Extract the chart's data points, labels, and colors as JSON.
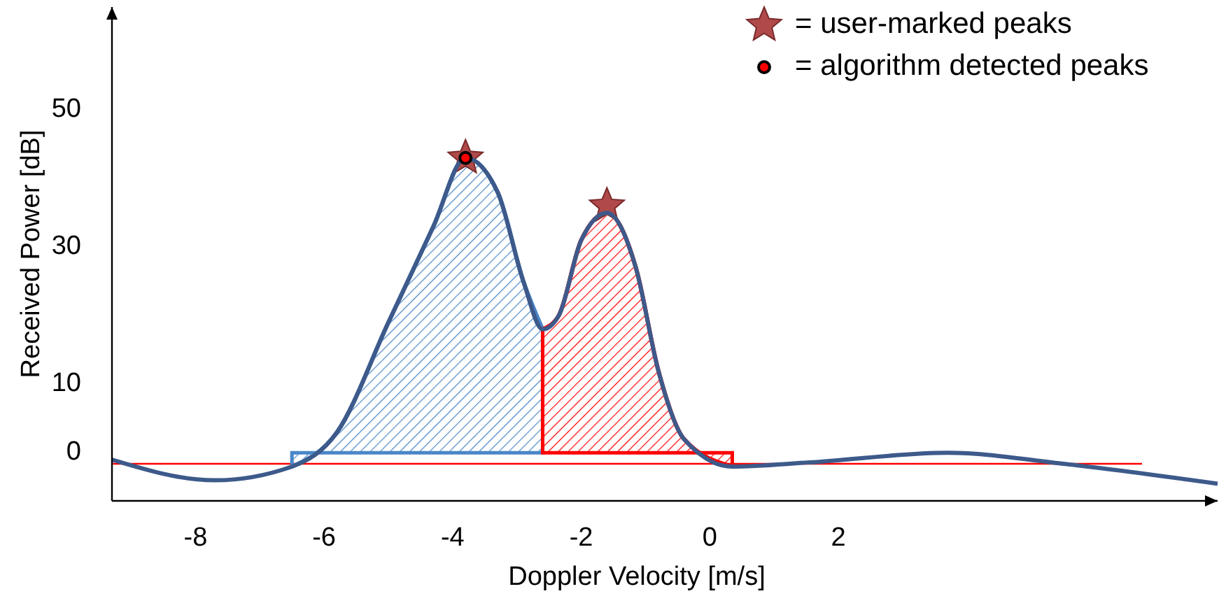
{
  "chart_data": {
    "type": "line",
    "xlabel": "Doppler Velocity [m/s]",
    "ylabel": "Received Power [dB]",
    "xlim": [
      -9.3,
      7.9
    ],
    "ylim": [
      -7,
      65
    ],
    "xticks": [
      -8,
      -6,
      -4,
      -2,
      0,
      2
    ],
    "yticks": [
      0,
      10,
      30,
      50
    ],
    "grid": false,
    "legend": "top right",
    "ref_lines": [
      {
        "axis": "y",
        "value": -1.6,
        "color": "#ff0000"
      }
    ],
    "series": [
      {
        "type": "area",
        "color": "#4a86c8",
        "x": [
          -6.5,
          -5.8,
          -5.0,
          -4.3,
          -3.8,
          -3.3,
          -2.9,
          -2.6
        ],
        "values": [
          -2,
          3,
          19,
          33,
          43,
          38,
          25,
          18
        ]
      },
      {
        "type": "area",
        "color": "#ff0000",
        "x": [
          -2.6,
          -2.35,
          -2.0,
          -1.6,
          -1.15,
          -0.8,
          -0.4,
          0.35
        ],
        "values": [
          18,
          20,
          31,
          35,
          27,
          12,
          2,
          -2
        ]
      },
      {
        "type": "scatter",
        "name": "= user-marked peaks",
        "marker": "star",
        "color": "#b04a4a",
        "x": [
          -3.8,
          -1.6
        ],
        "values": [
          43,
          36
        ]
      },
      {
        "color": "#3d5a8a",
        "x": [
          -9.3,
          -7.7,
          -6.5,
          -5.8,
          -5.0,
          -4.3,
          -3.8,
          -3.3,
          -2.9,
          -2.6,
          -2.35,
          -2.0,
          -1.6,
          -1.15,
          -0.8,
          -0.4,
          0.35,
          1.55,
          3.7,
          5.5,
          7.9
        ],
        "values": [
          -1,
          -4,
          -2,
          3,
          19,
          33,
          43,
          38,
          25,
          18,
          20,
          31,
          35,
          27,
          12,
          2,
          -2,
          -1.4,
          0,
          -1.6,
          -4.5
        ]
      },
      {
        "type": "scatter",
        "name": "= algorithm detected peaks",
        "marker": "circle",
        "color": "#ff0000",
        "x": [
          -3.8
        ],
        "values": [
          43
        ]
      }
    ]
  }
}
